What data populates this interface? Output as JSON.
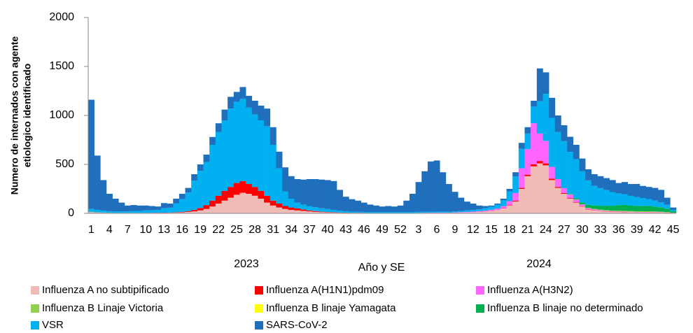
{
  "chart_data": {
    "type": "stacked_bar",
    "y_label": [
      "Numero de internados con agente",
      "etiologico identificado"
    ],
    "x_label": "Año y SE",
    "annotations": [
      "2023",
      "2024"
    ],
    "ylim": [
      0,
      2000
    ],
    "yticks": [
      0,
      500,
      1000,
      1500,
      2000
    ],
    "categories": [
      "1",
      null,
      null,
      "4",
      null,
      null,
      "7",
      null,
      null,
      "10",
      null,
      null,
      "13",
      null,
      null,
      "16",
      null,
      null,
      "19",
      null,
      null,
      "22",
      null,
      null,
      "25",
      null,
      null,
      "28",
      null,
      null,
      "31",
      null,
      null,
      "34",
      null,
      null,
      "37",
      null,
      null,
      "40",
      null,
      null,
      "43",
      null,
      null,
      "46",
      null,
      null,
      "49",
      null,
      null,
      "52",
      null,
      null,
      "3",
      null,
      null,
      "6",
      null,
      null,
      "9",
      null,
      null,
      "12",
      null,
      null,
      "15",
      null,
      null,
      "18",
      null,
      null,
      "21",
      null,
      null,
      "24",
      null,
      null,
      "27",
      null,
      null,
      "30",
      null,
      null,
      "33",
      null,
      null,
      "36",
      null,
      null,
      "39",
      null,
      null,
      "42",
      null,
      null,
      "45"
    ],
    "series": [
      {
        "name": "Influenza A no subtipificado",
        "color": "#f2bcb6",
        "values": [
          10,
          8,
          6,
          5,
          5,
          5,
          5,
          5,
          5,
          5,
          5,
          5,
          5,
          6,
          8,
          10,
          15,
          20,
          30,
          45,
          70,
          100,
          130,
          160,
          190,
          210,
          200,
          180,
          150,
          110,
          80,
          60,
          45,
          35,
          30,
          25,
          20,
          15,
          12,
          10,
          8,
          6,
          5,
          5,
          5,
          4,
          4,
          4,
          4,
          4,
          4,
          4,
          4,
          4,
          5,
          5,
          5,
          5,
          5,
          5,
          6,
          8,
          10,
          12,
          15,
          20,
          25,
          35,
          50,
          80,
          120,
          250,
          380,
          480,
          510,
          490,
          340,
          260,
          200,
          150,
          110,
          70,
          40,
          30,
          25,
          20,
          15,
          15,
          12,
          12,
          10,
          10,
          10,
          10,
          8,
          6,
          3
        ]
      },
      {
        "name": "Influenza A(H1N1)pdm09",
        "color": "#ff0000",
        "values": [
          0,
          0,
          0,
          0,
          0,
          0,
          0,
          0,
          0,
          0,
          1,
          1,
          2,
          2,
          3,
          5,
          8,
          15,
          25,
          40,
          60,
          80,
          100,
          110,
          120,
          120,
          100,
          90,
          80,
          70,
          50,
          40,
          30,
          25,
          20,
          15,
          10,
          8,
          5,
          4,
          3,
          2,
          2,
          1,
          1,
          1,
          0,
          0,
          0,
          0,
          0,
          0,
          0,
          0,
          0,
          0,
          0,
          0,
          0,
          0,
          0,
          0,
          0,
          0,
          1,
          1,
          2,
          2,
          3,
          5,
          8,
          10,
          15,
          20,
          25,
          20,
          15,
          10,
          8,
          6,
          5,
          4,
          3,
          3,
          2,
          2,
          2,
          2,
          2,
          1,
          1,
          1,
          1,
          1,
          1,
          1,
          0
        ]
      },
      {
        "name": "Influenza A(H3N2)",
        "color": "#ff66ff",
        "values": [
          2,
          1,
          1,
          1,
          0,
          0,
          0,
          0,
          0,
          0,
          0,
          0,
          0,
          0,
          0,
          0,
          0,
          0,
          0,
          0,
          0,
          0,
          0,
          0,
          0,
          0,
          0,
          0,
          0,
          0,
          0,
          0,
          0,
          0,
          0,
          0,
          0,
          0,
          0,
          0,
          0,
          0,
          0,
          0,
          0,
          0,
          0,
          0,
          0,
          0,
          0,
          0,
          0,
          0,
          0,
          1,
          2,
          3,
          3,
          3,
          4,
          5,
          5,
          6,
          6,
          8,
          10,
          12,
          20,
          40,
          80,
          200,
          260,
          420,
          280,
          230,
          120,
          80,
          50,
          35,
          25,
          15,
          10,
          8,
          6,
          5,
          5,
          4,
          4,
          3,
          3,
          3,
          3,
          3,
          3,
          2,
          1
        ]
      },
      {
        "name": "Influenza B Linaje Victoria",
        "color": "#92d050",
        "values": [
          2,
          1,
          1,
          0,
          0,
          0,
          0,
          0,
          0,
          0,
          0,
          0,
          0,
          0,
          0,
          0,
          0,
          0,
          0,
          0,
          0,
          0,
          0,
          0,
          0,
          0,
          0,
          0,
          0,
          0,
          0,
          0,
          0,
          0,
          0,
          0,
          0,
          0,
          0,
          0,
          0,
          0,
          0,
          0,
          0,
          0,
          0,
          0,
          0,
          0,
          0,
          0,
          0,
          0,
          0,
          0,
          0,
          0,
          0,
          0,
          0,
          0,
          0,
          0,
          0,
          0,
          0,
          0,
          0,
          0,
          0,
          0,
          0,
          0,
          0,
          0,
          0,
          0,
          0,
          2,
          3,
          3,
          4,
          5,
          5,
          6,
          6,
          8,
          8,
          8,
          8,
          8,
          7,
          6,
          5,
          4,
          2
        ]
      },
      {
        "name": "Influenza B linaje Yamagata",
        "color": "#ffff00",
        "values": [
          0,
          0,
          0,
          0,
          0,
          0,
          0,
          0,
          0,
          0,
          0,
          0,
          0,
          0,
          0,
          0,
          0,
          0,
          0,
          0,
          0,
          0,
          0,
          0,
          0,
          0,
          0,
          0,
          0,
          0,
          0,
          0,
          0,
          0,
          0,
          0,
          0,
          0,
          0,
          0,
          0,
          0,
          0,
          0,
          0,
          0,
          0,
          0,
          0,
          0,
          0,
          0,
          0,
          0,
          0,
          0,
          0,
          0,
          0,
          0,
          0,
          0,
          0,
          0,
          0,
          0,
          0,
          0,
          0,
          0,
          0,
          0,
          0,
          0,
          0,
          0,
          0,
          0,
          0,
          0,
          0,
          0,
          0,
          0,
          0,
          0,
          0,
          0,
          0,
          0,
          0,
          0,
          0,
          0,
          0,
          0,
          0
        ]
      },
      {
        "name": "Influenza B linaje no determinado",
        "color": "#00b050",
        "values": [
          2,
          1,
          1,
          1,
          1,
          0,
          0,
          0,
          0,
          0,
          0,
          0,
          0,
          0,
          0,
          0,
          0,
          0,
          0,
          0,
          0,
          0,
          0,
          0,
          0,
          0,
          0,
          0,
          0,
          0,
          0,
          0,
          0,
          0,
          0,
          0,
          0,
          0,
          0,
          0,
          0,
          0,
          0,
          0,
          0,
          0,
          0,
          0,
          0,
          0,
          0,
          0,
          0,
          0,
          0,
          0,
          0,
          0,
          0,
          0,
          0,
          0,
          0,
          0,
          0,
          0,
          0,
          0,
          0,
          0,
          0,
          0,
          0,
          0,
          0,
          0,
          0,
          0,
          0,
          5,
          10,
          20,
          30,
          35,
          40,
          45,
          50,
          55,
          60,
          55,
          55,
          55,
          55,
          50,
          45,
          35,
          15
        ]
      },
      {
        "name": "VSR",
        "color": "#00b0f0",
        "values": [
          30,
          25,
          20,
          15,
          15,
          15,
          15,
          20,
          20,
          25,
          25,
          30,
          45,
          50,
          90,
          130,
          190,
          300,
          380,
          440,
          570,
          650,
          720,
          800,
          830,
          840,
          780,
          740,
          720,
          710,
          570,
          360,
          150,
          90,
          60,
          50,
          45,
          40,
          35,
          30,
          25,
          20,
          15,
          12,
          10,
          10,
          10,
          10,
          10,
          10,
          10,
          10,
          10,
          10,
          10,
          10,
          10,
          10,
          10,
          10,
          10,
          12,
          15,
          18,
          20,
          25,
          30,
          40,
          60,
          100,
          170,
          200,
          160,
          170,
          330,
          480,
          500,
          480,
          480,
          430,
          400,
          320,
          250,
          200,
          180,
          160,
          140,
          120,
          110,
          100,
          90,
          80,
          70,
          60,
          50,
          40,
          15
        ]
      },
      {
        "name": "SARS-CoV-2",
        "color": "#1f6fbd",
        "values": [
          1114,
          554,
          311,
          178,
          129,
          90,
          60,
          60,
          55,
          50,
          44,
          34,
          53,
          42,
          49,
          55,
          47,
          65,
          65,
          75,
          80,
          90,
          110,
          120,
          100,
          120,
          120,
          140,
          150,
          180,
          180,
          170,
          245,
          230,
          240,
          255,
          275,
          287,
          293,
          296,
          294,
          212,
          148,
          127,
          114,
          95,
          76,
          66,
          56,
          61,
          56,
          66,
          116,
          186,
          305,
          414,
          513,
          522,
          402,
          282,
          200,
          135,
          90,
          64,
          38,
          21,
          13,
          11,
          17,
          25,
          42,
          60,
          65,
          60,
          335,
          220,
          205,
          170,
          162,
          154,
          147,
          128,
          113,
          119,
          122,
          122,
          122,
          106,
          124,
          121,
          133,
          123,
          124,
          130,
          128,
          72,
          24
        ]
      }
    ]
  }
}
